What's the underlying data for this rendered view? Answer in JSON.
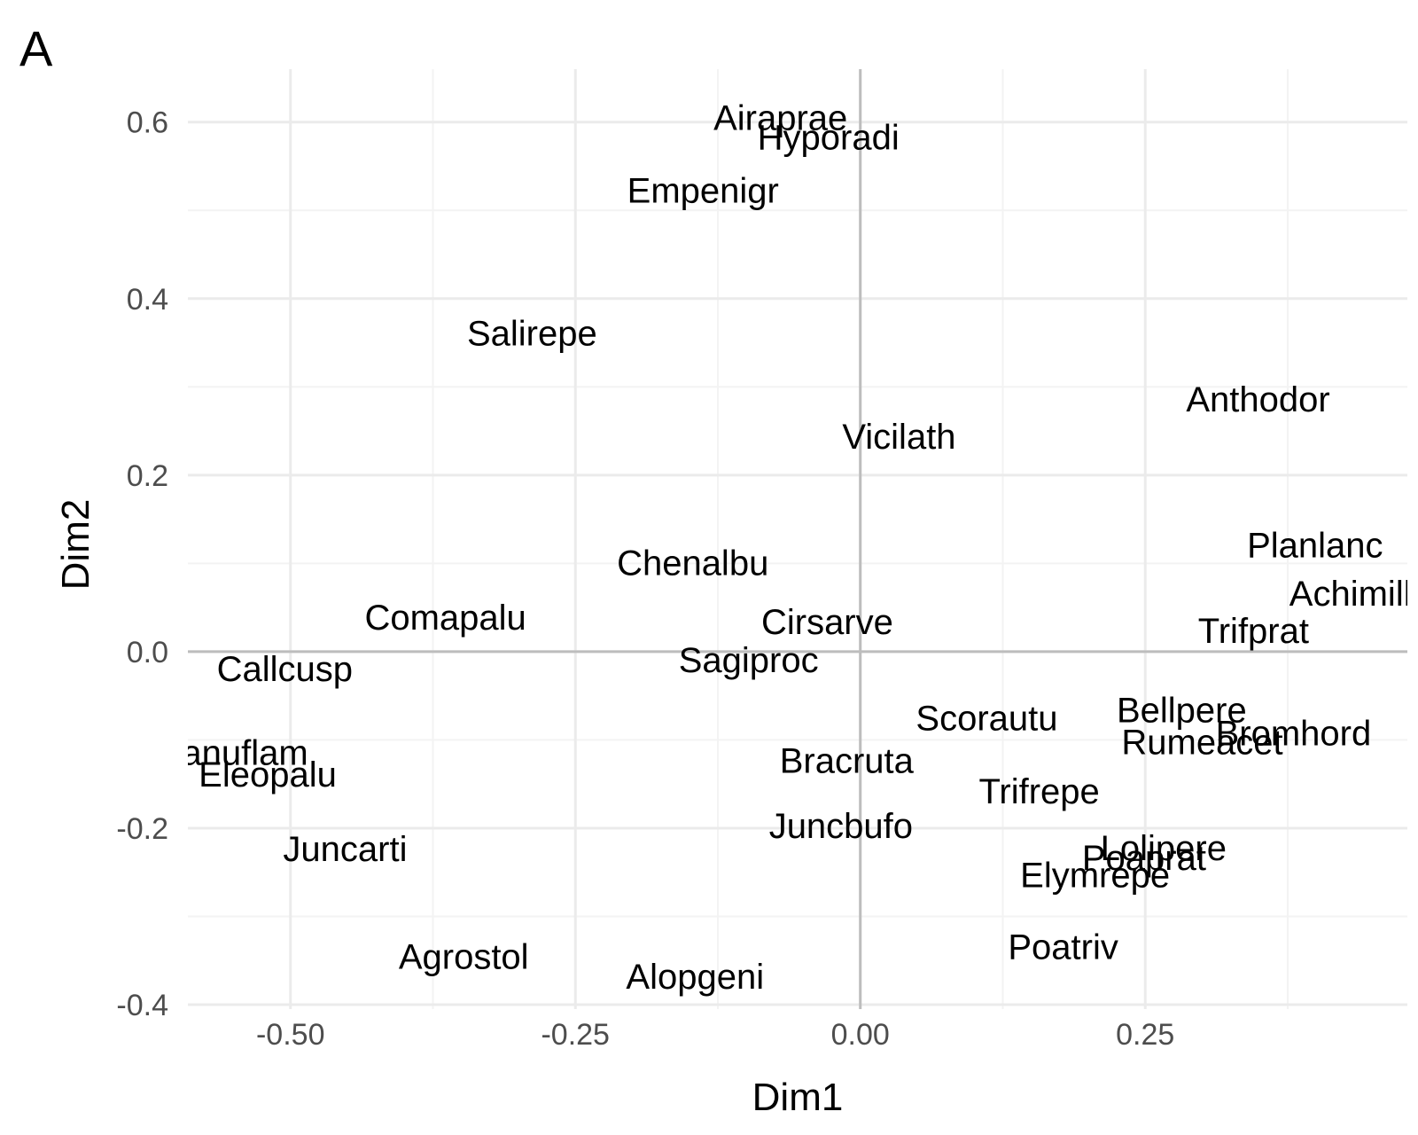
{
  "panel_tag": "A",
  "chart_data": {
    "type": "scatter",
    "xlabel": "Dim1",
    "ylabel": "Dim2",
    "xlim": [
      -0.59,
      0.48
    ],
    "ylim": [
      -0.405,
      0.66
    ],
    "x_ticks": [
      -0.5,
      -0.25,
      0.0,
      0.25
    ],
    "x_tick_labels": [
      "-0.50",
      "-0.25",
      "0.00",
      "0.25"
    ],
    "y_ticks": [
      -0.4,
      -0.2,
      0.0,
      0.2,
      0.4,
      0.6
    ],
    "y_tick_labels": [
      "-0.4",
      "-0.2",
      "0.0",
      "0.2",
      "0.4",
      "0.6"
    ],
    "grid": true,
    "zero_lines": true,
    "points": [
      {
        "label": "Airaprae",
        "x": -0.07,
        "y": 0.605
      },
      {
        "label": "Hyporadi",
        "x": -0.028,
        "y": 0.583
      },
      {
        "label": "Empenigr",
        "x": -0.138,
        "y": 0.523
      },
      {
        "label": "Salirepe",
        "x": -0.288,
        "y": 0.361
      },
      {
        "label": "Anthodor",
        "x": 0.349,
        "y": 0.286
      },
      {
        "label": "Vicilath",
        "x": 0.034,
        "y": 0.244
      },
      {
        "label": "Planlanc",
        "x": 0.399,
        "y": 0.121
      },
      {
        "label": "Chenalbu",
        "x": -0.147,
        "y": 0.101
      },
      {
        "label": "Achimill",
        "x": 0.43,
        "y": 0.066
      },
      {
        "label": "Comapalu",
        "x": -0.364,
        "y": 0.039
      },
      {
        "label": "Cirsarve",
        "x": -0.029,
        "y": 0.034
      },
      {
        "label": "Trifprat",
        "x": 0.345,
        "y": 0.024
      },
      {
        "label": "Callcusp",
        "x": -0.505,
        "y": -0.019
      },
      {
        "label": "Sagiproc",
        "x": -0.098,
        "y": -0.009
      },
      {
        "label": "Bellpere",
        "x": 0.282,
        "y": -0.066
      },
      {
        "label": "Scorautu",
        "x": 0.111,
        "y": -0.075
      },
      {
        "label": "Bromhord",
        "x": 0.38,
        "y": -0.092
      },
      {
        "label": "Rumeacet",
        "x": 0.3,
        "y": -0.102
      },
      {
        "label": "Ranuflam",
        "x": -0.551,
        "y": -0.114
      },
      {
        "label": "Bracruta",
        "x": -0.012,
        "y": -0.123
      },
      {
        "label": "Eleopalu",
        "x": -0.52,
        "y": -0.139
      },
      {
        "label": "Trifrepe",
        "x": 0.157,
        "y": -0.158
      },
      {
        "label": "Juncbufo",
        "x": -0.017,
        "y": -0.197
      },
      {
        "label": "Juncarti",
        "x": -0.452,
        "y": -0.223
      },
      {
        "label": "Lolipere",
        "x": 0.266,
        "y": -0.222
      },
      {
        "label": "Poaprat",
        "x": 0.249,
        "y": -0.233
      },
      {
        "label": "Elymrepe",
        "x": 0.206,
        "y": -0.253
      },
      {
        "label": "Poatriv",
        "x": 0.178,
        "y": -0.334
      },
      {
        "label": "Agrostol",
        "x": -0.348,
        "y": -0.345
      },
      {
        "label": "Alopgeni",
        "x": -0.145,
        "y": -0.368
      }
    ]
  }
}
